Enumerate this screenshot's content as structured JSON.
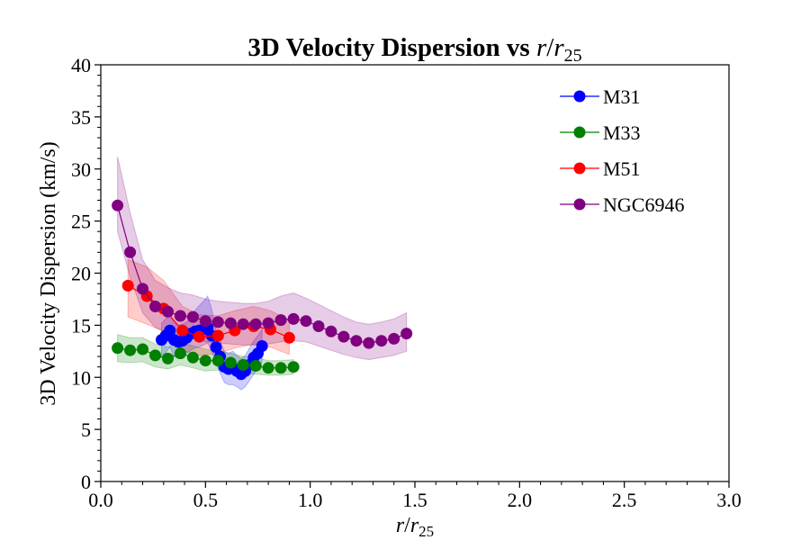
{
  "chart_data": {
    "type": "line",
    "title": "3D Velocity Dispersion vs r/r25",
    "title_parts": {
      "prefix": "3D Velocity Dispersion vs ",
      "r": "r",
      "slash": "/",
      "r_sub": "25"
    },
    "xlabel": "r/r25",
    "xlabel_parts": {
      "r": "r",
      "slash": "/",
      "r_sub": "25"
    },
    "ylabel": "3D Velocity Dispersion (km/s)",
    "xlim": [
      0.0,
      3.0
    ],
    "ylim": [
      0,
      40
    ],
    "x_ticks": [
      "0.0",
      "0.5",
      "1.0",
      "1.5",
      "2.0",
      "2.5",
      "3.0"
    ],
    "y_ticks": [
      "0",
      "5",
      "10",
      "15",
      "20",
      "25",
      "30",
      "35",
      "40"
    ],
    "grid": false,
    "legend_position": "top-right",
    "series": [
      {
        "name": "M31",
        "color": "#0000ff",
        "x": [
          0.29,
          0.31,
          0.33,
          0.35,
          0.37,
          0.39,
          0.41,
          0.43,
          0.45,
          0.47,
          0.49,
          0.51,
          0.53,
          0.55,
          0.57,
          0.59,
          0.61,
          0.63,
          0.65,
          0.67,
          0.69,
          0.71,
          0.73,
          0.75,
          0.77
        ],
        "y": [
          13.6,
          14.0,
          14.5,
          13.6,
          13.4,
          13.5,
          13.8,
          14.2,
          14.4,
          14.5,
          14.6,
          14.8,
          14.0,
          12.9,
          12.0,
          11.0,
          10.8,
          10.9,
          10.6,
          10.3,
          10.6,
          11.2,
          11.9,
          12.3,
          13.0
        ],
        "band_low": [
          12.0,
          12.4,
          12.9,
          12.0,
          11.8,
          12.0,
          12.3,
          12.6,
          12.8,
          12.9,
          13.1,
          13.3,
          12.5,
          11.3,
          10.4,
          9.5,
          9.3,
          9.3,
          9.1,
          8.8,
          9.1,
          9.7,
          10.3,
          10.8,
          11.5
        ],
        "band_high": [
          15.2,
          15.6,
          16.1,
          15.2,
          15.0,
          15.1,
          15.3,
          15.8,
          16.4,
          16.9,
          17.3,
          17.8,
          16.5,
          14.5,
          13.5,
          12.5,
          12.3,
          12.5,
          12.1,
          11.8,
          12.1,
          12.8,
          13.5,
          14.0,
          14.6
        ]
      },
      {
        "name": "M33",
        "color": "#008000",
        "x": [
          0.08,
          0.14,
          0.2,
          0.26,
          0.32,
          0.38,
          0.44,
          0.5,
          0.56,
          0.62,
          0.68,
          0.74,
          0.8,
          0.86,
          0.92
        ],
        "y": [
          12.8,
          12.6,
          12.7,
          12.1,
          11.8,
          12.3,
          11.9,
          11.6,
          11.6,
          11.4,
          11.2,
          11.1,
          10.9,
          10.9,
          11.0
        ],
        "band_low": [
          11.5,
          11.4,
          11.5,
          11.0,
          10.8,
          11.2,
          10.9,
          10.6,
          10.7,
          10.5,
          10.4,
          10.3,
          10.2,
          10.2,
          10.3
        ],
        "band_high": [
          14.1,
          13.8,
          13.8,
          13.2,
          12.9,
          13.4,
          13.0,
          12.7,
          12.5,
          12.3,
          12.0,
          11.9,
          11.6,
          11.6,
          11.7
        ]
      },
      {
        "name": "M51",
        "color": "#ff0000",
        "x": [
          0.13,
          0.22,
          0.3,
          0.39,
          0.47,
          0.56,
          0.64,
          0.73,
          0.81,
          0.9
        ],
        "y": [
          18.8,
          17.8,
          16.6,
          14.5,
          13.9,
          14.0,
          14.5,
          14.9,
          14.6,
          13.8
        ],
        "band_low": [
          15.8,
          15.1,
          14.4,
          12.6,
          12.1,
          12.3,
          12.8,
          13.2,
          12.9,
          12.2
        ],
        "band_high": [
          21.3,
          20.6,
          19.3,
          16.8,
          16.0,
          15.9,
          16.4,
          16.8,
          16.4,
          15.5
        ]
      },
      {
        "name": "NGC6946",
        "color": "#800080",
        "x": [
          0.08,
          0.14,
          0.2,
          0.26,
          0.32,
          0.38,
          0.44,
          0.5,
          0.56,
          0.62,
          0.68,
          0.74,
          0.8,
          0.86,
          0.92,
          0.98,
          1.04,
          1.1,
          1.16,
          1.22,
          1.28,
          1.34,
          1.4,
          1.46
        ],
        "y": [
          26.5,
          22.0,
          18.5,
          16.8,
          16.3,
          15.9,
          15.8,
          15.4,
          15.3,
          15.2,
          15.1,
          15.1,
          15.2,
          15.5,
          15.6,
          15.4,
          14.9,
          14.4,
          13.9,
          13.5,
          13.3,
          13.5,
          13.7,
          14.2
        ],
        "band_low": [
          24.0,
          19.6,
          16.2,
          14.8,
          14.3,
          13.9,
          13.8,
          13.4,
          13.3,
          13.2,
          13.1,
          13.1,
          13.2,
          13.4,
          13.5,
          13.4,
          13.0,
          12.6,
          12.2,
          11.9,
          11.7,
          11.9,
          12.1,
          12.5
        ],
        "band_high": [
          31.2,
          25.8,
          21.3,
          19.3,
          18.6,
          18.1,
          17.9,
          17.5,
          17.3,
          17.2,
          17.1,
          17.1,
          17.3,
          17.8,
          18.1,
          17.6,
          17.0,
          16.4,
          15.8,
          15.3,
          15.1,
          15.3,
          15.6,
          16.2
        ]
      }
    ]
  }
}
